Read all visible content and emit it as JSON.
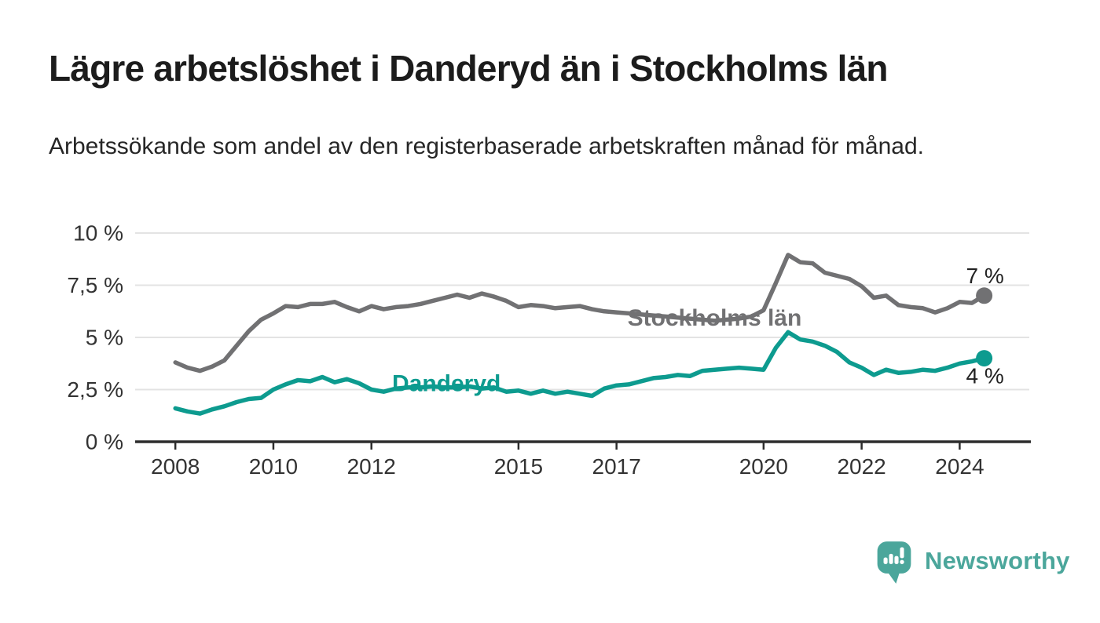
{
  "header": {
    "title": "Lägre arbetslöshet i Danderyd än i Stockholms län",
    "subtitle": "Arbetssökande som andel av den registerbaserade arbetskraften månad för månad."
  },
  "chart_data": {
    "type": "line",
    "title": "Lägre arbetslöshet i Danderyd än i Stockholms län",
    "xlabel": "",
    "ylabel": "",
    "grid": true,
    "xlim": [
      2007.18,
      2025.42
    ],
    "ylim": [
      0,
      10
    ],
    "x_start": 2008,
    "x_step": 0.25,
    "x_end": 2024.5,
    "x_ticks": [
      2008,
      2010,
      2012,
      2015,
      2017,
      2020,
      2022,
      2024
    ],
    "x_tick_labels": [
      "2008",
      "2010",
      "2012",
      "2015",
      "2017",
      "2020",
      "2022",
      "2024"
    ],
    "y_ticks": [
      0,
      2.5,
      5,
      7.5,
      10
    ],
    "y_tick_labels": [
      "0 %",
      "2,5 %",
      "5 %",
      "7,5 %",
      "10 %"
    ],
    "colors": {
      "grid": "#e3e3e3",
      "axis": "#2d2d2d",
      "axis_text": "#333333",
      "end_label_text": "#222222"
    },
    "series": [
      {
        "name": "Stockholms län",
        "color": "#717173",
        "end_label": "7 %",
        "end_label_pos": "above",
        "label_anchor": {
          "x": 2019.0,
          "y": 5.95
        },
        "values": [
          3.8,
          3.55,
          3.4,
          3.6,
          3.9,
          4.6,
          5.3,
          5.85,
          6.15,
          6.5,
          6.45,
          6.6,
          6.6,
          6.7,
          6.45,
          6.25,
          6.5,
          6.35,
          6.45,
          6.5,
          6.6,
          6.75,
          6.9,
          7.05,
          6.9,
          7.1,
          6.95,
          6.75,
          6.45,
          6.55,
          6.5,
          6.4,
          6.45,
          6.5,
          6.35,
          6.25,
          6.2,
          6.15,
          6.1,
          6.05,
          6.0,
          5.95,
          5.9,
          5.85,
          5.8,
          5.85,
          5.9,
          6.0,
          6.3,
          7.6,
          8.95,
          8.6,
          8.55,
          8.1,
          7.95,
          7.8,
          7.45,
          6.9,
          7.0,
          6.55,
          6.45,
          6.4,
          6.2,
          6.4,
          6.7,
          6.65,
          7.0
        ]
      },
      {
        "name": "Danderyd",
        "color": "#0d9b8f",
        "end_label": "4 %",
        "end_label_pos": "below",
        "label_anchor": {
          "x": 2013.53,
          "y": 2.8
        },
        "values": [
          1.6,
          1.45,
          1.35,
          1.55,
          1.7,
          1.9,
          2.05,
          2.1,
          2.5,
          2.75,
          2.95,
          2.9,
          3.1,
          2.85,
          3.0,
          2.8,
          2.5,
          2.4,
          2.55,
          2.6,
          2.6,
          2.65,
          2.6,
          2.6,
          2.65,
          2.55,
          2.6,
          2.4,
          2.45,
          2.3,
          2.45,
          2.3,
          2.4,
          2.3,
          2.2,
          2.55,
          2.7,
          2.75,
          2.9,
          3.05,
          3.1,
          3.2,
          3.15,
          3.4,
          3.45,
          3.5,
          3.55,
          3.5,
          3.45,
          4.5,
          5.25,
          4.9,
          4.8,
          4.6,
          4.3,
          3.8,
          3.55,
          3.2,
          3.45,
          3.3,
          3.35,
          3.45,
          3.4,
          3.55,
          3.75,
          3.85,
          4.0
        ]
      }
    ]
  },
  "footer": {
    "brand": "Newsworthy",
    "brand_color": "#4ba69b",
    "logo_icon": "newsworthy-bubble-chart-icon"
  }
}
